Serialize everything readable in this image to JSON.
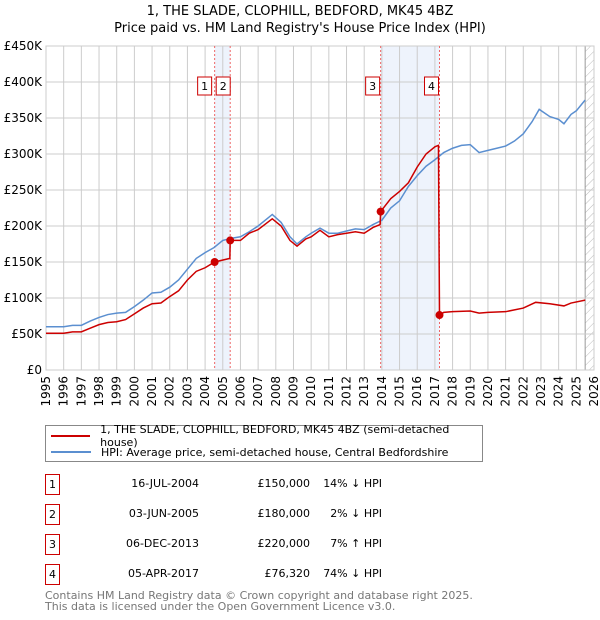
{
  "chart_data": {
    "type": "line",
    "title": "1, THE SLADE, CLOPHILL, BEDFORD, MK45 4BZ",
    "subtitle": "Price paid vs. HM Land Registry's House Price Index (HPI)",
    "xlim": [
      1995,
      2026
    ],
    "ylim": [
      0,
      450000
    ],
    "y_ticks": [
      {
        "v": 0,
        "label": "£0"
      },
      {
        "v": 50000,
        "label": "£50K"
      },
      {
        "v": 100000,
        "label": "£100K"
      },
      {
        "v": 150000,
        "label": "£150K"
      },
      {
        "v": 200000,
        "label": "£200K"
      },
      {
        "v": 250000,
        "label": "£250K"
      },
      {
        "v": 300000,
        "label": "£300K"
      },
      {
        "v": 350000,
        "label": "£350K"
      },
      {
        "v": 400000,
        "label": "£400K"
      },
      {
        "v": 450000,
        "label": "£450K"
      }
    ],
    "x_ticks": [
      "1995",
      "1996",
      "1997",
      "1998",
      "1999",
      "2000",
      "2001",
      "2002",
      "2003",
      "2004",
      "2005",
      "2006",
      "2007",
      "2008",
      "2009",
      "2010",
      "2011",
      "2012",
      "2013",
      "2014",
      "2015",
      "2016",
      "2017",
      "2018",
      "2019",
      "2020",
      "2021",
      "2022",
      "2023",
      "2024",
      "2025",
      "2026"
    ],
    "grid": true,
    "series": [
      {
        "name": "1, THE SLADE, CLOPHILL, BEDFORD, MK45 4BZ (semi-detached house)",
        "color": "#cc0000",
        "x": [
          1995,
          1996,
          1996.5,
          1997,
          1997.5,
          1998,
          1998.5,
          1999,
          1999.5,
          2000,
          2000.5,
          2001,
          2001.5,
          2002,
          2002.5,
          2003,
          2003.5,
          2004,
          2004.54,
          2005.4,
          2005.42,
          2006,
          2006.5,
          2007,
          2007.8,
          2008.3,
          2008.8,
          2009.2,
          2009.7,
          2010,
          2010.5,
          2011,
          2011.5,
          2012,
          2012.5,
          2013,
          2013.5,
          2013.9,
          2013.93,
          2014.5,
          2015,
          2015.5,
          2016,
          2016.5,
          2017,
          2017.2,
          2017.26,
          2017.5,
          2018,
          2019,
          2019.5,
          2020,
          2021,
          2022,
          2022.7,
          2023.5,
          2024.3,
          2024.7,
          2025.5
        ],
        "y": [
          51000,
          51000,
          53000,
          53000,
          58000,
          63000,
          66000,
          67000,
          70000,
          78000,
          86000,
          92000,
          93000,
          102000,
          110000,
          125000,
          137000,
          142000,
          150000,
          155000,
          180000,
          180000,
          190000,
          195000,
          210000,
          200000,
          180000,
          172000,
          182000,
          185000,
          194000,
          185000,
          188000,
          190000,
          192000,
          190000,
          198000,
          202000,
          220000,
          238000,
          248000,
          260000,
          282000,
          300000,
          310000,
          312000,
          76320,
          80000,
          81000,
          82000,
          79000,
          80000,
          81000,
          86000,
          94000,
          92000,
          89000,
          93000,
          97000
        ]
      },
      {
        "name": "HPI: Average price, semi-detached house, Central Bedfordshire",
        "color": "#5b8fd0",
        "x": [
          1995,
          1996,
          1996.5,
          1997,
          1997.5,
          1998,
          1998.5,
          1999,
          1999.5,
          2000,
          2000.5,
          2001,
          2001.5,
          2002,
          2002.5,
          2003,
          2003.5,
          2004,
          2004.5,
          2005,
          2005.5,
          2006,
          2006.5,
          2007,
          2007.5,
          2007.8,
          2008.3,
          2008.8,
          2009.2,
          2009.7,
          2010,
          2010.5,
          2011,
          2011.5,
          2012,
          2012.5,
          2013,
          2013.5,
          2014,
          2014.5,
          2015,
          2015.5,
          2016,
          2016.5,
          2017,
          2017.5,
          2018,
          2018.5,
          2019,
          2019.5,
          2020,
          2020.5,
          2021,
          2021.5,
          2022,
          2022.5,
          2022.9,
          2023.5,
          2024,
          2024.3,
          2024.7,
          2025,
          2025.5
        ],
        "y": [
          60000,
          60000,
          62000,
          62000,
          68000,
          73000,
          77000,
          79000,
          80000,
          88000,
          97000,
          107000,
          108000,
          115000,
          125000,
          140000,
          155000,
          163000,
          170000,
          180000,
          183000,
          185000,
          192000,
          200000,
          210000,
          216000,
          205000,
          185000,
          175000,
          185000,
          190000,
          197000,
          190000,
          190000,
          193000,
          196000,
          195000,
          202000,
          208000,
          225000,
          235000,
          255000,
          270000,
          283000,
          292000,
          302000,
          308000,
          312000,
          313000,
          302000,
          305000,
          308000,
          311000,
          318000,
          328000,
          345000,
          362000,
          352000,
          348000,
          342000,
          355000,
          360000,
          375000
        ]
      }
    ],
    "sales": [
      {
        "n": "1",
        "date": "16-JUL-2004",
        "x": 2004.54,
        "price": 150000,
        "price_label": "£150,000",
        "hpi": "14% ↓ HPI"
      },
      {
        "n": "2",
        "date": "03-JUN-2005",
        "x": 2005.42,
        "price": 180000,
        "price_label": "£180,000",
        "hpi": "2% ↓ HPI"
      },
      {
        "n": "3",
        "date": "06-DEC-2013",
        "x": 2013.93,
        "price": 220000,
        "price_label": "£220,000",
        "hpi": "7% ↑ HPI"
      },
      {
        "n": "4",
        "date": "05-APR-2017",
        "x": 2017.26,
        "price": 76320,
        "price_label": "£76,320",
        "hpi": "74% ↓ HPI"
      }
    ],
    "shaded": [
      [
        2004.54,
        2005.42
      ],
      [
        2013.93,
        2017.26
      ]
    ],
    "forecast_from": 2025.5
  },
  "footer": {
    "line1": "Contains HM Land Registry data © Crown copyright and database right 2025.",
    "line2": "This data is licensed under the Open Government Licence v3.0."
  }
}
